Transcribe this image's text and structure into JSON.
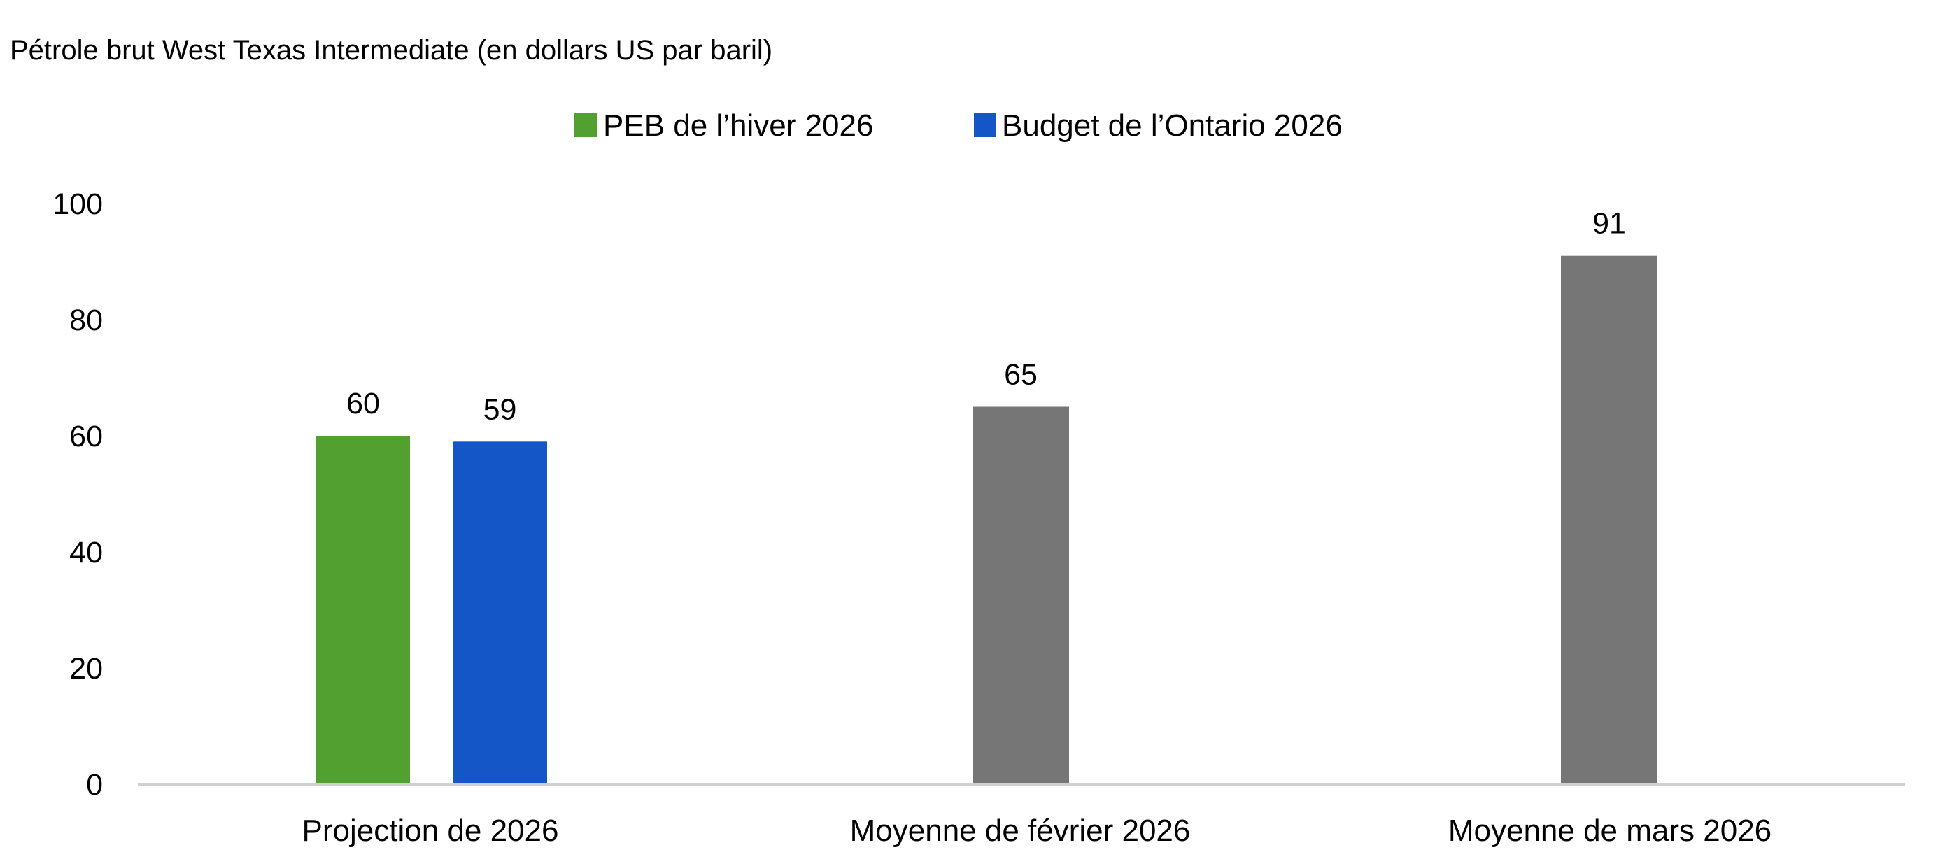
{
  "chart_data": {
    "type": "bar",
    "title": "Pétrole brut West Texas Intermediate (en dollars US par baril)",
    "categories": [
      "Projection de 2026",
      "Moyenne de février 2026",
      "Moyenne de mars 2026"
    ],
    "legend": [
      {
        "name": "PEB de l’hiver 2026",
        "color": "#52a02f"
      },
      {
        "name": "Budget de l’Ontario 2026",
        "color": "#1456c8"
      }
    ],
    "legend_position": "top-center",
    "bars": [
      {
        "category": "Projection de 2026",
        "series": "PEB de l’hiver 2026",
        "value": 60,
        "label": "60",
        "color": "#52a02f"
      },
      {
        "category": "Projection de 2026",
        "series": "Budget de l’Ontario 2026",
        "value": 59,
        "label": "59",
        "color": "#1456c8"
      },
      {
        "category": "Moyenne de février 2026",
        "value": 65,
        "label": "65",
        "color": "#767676"
      },
      {
        "category": "Moyenne de mars 2026",
        "value": 91,
        "label": "91",
        "color": "#767676"
      }
    ],
    "yticks": [
      "0",
      "20",
      "40",
      "60",
      "80",
      "100"
    ],
    "ylim": [
      0,
      100
    ],
    "grid": false,
    "xlabel": "",
    "ylabel": ""
  }
}
